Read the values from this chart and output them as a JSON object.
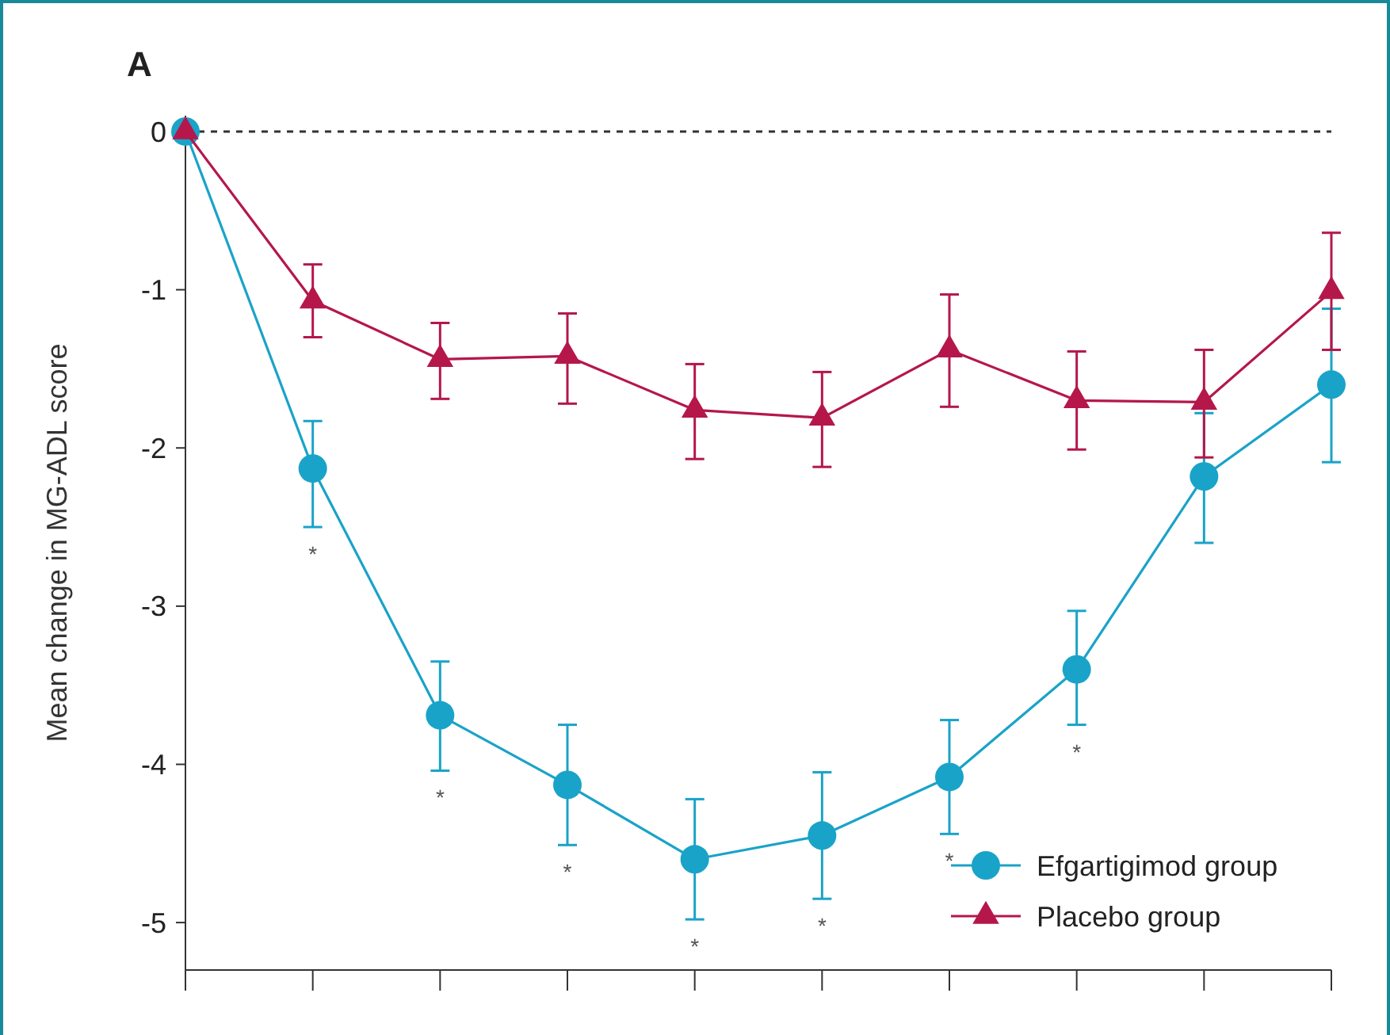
{
  "chart_data": {
    "type": "line",
    "ylabel": "Mean change in MG-ADL score",
    "annotations": [
      "A"
    ],
    "categories": [
      null,
      null,
      null,
      null,
      null,
      null,
      null,
      null,
      null,
      null
    ],
    "ylim": [
      -5.3,
      0.1
    ],
    "yticks": [
      0,
      -1,
      -2,
      -3,
      -4,
      -5
    ],
    "grid": false,
    "legend": "bottom right",
    "ref_lines": [
      {
        "axis": "y",
        "value": 0,
        "color": "#333333",
        "line_style": "dashed"
      }
    ],
    "series": [
      {
        "name": "Efgartigimod group",
        "color": "#1aa3c8",
        "marker": "circle",
        "values": [
          0,
          -2.13,
          -3.69,
          -4.13,
          -4.6,
          -4.45,
          -4.08,
          -3.4,
          -2.18,
          -1.6
        ],
        "errors": [
          null,
          [
            -2.5,
            -1.83
          ],
          [
            -4.04,
            -3.35
          ],
          [
            -4.51,
            -3.75
          ],
          [
            -4.98,
            -4.22
          ],
          [
            -4.85,
            -4.05
          ],
          [
            -4.44,
            -3.72
          ],
          [
            -3.75,
            -3.03
          ],
          [
            -2.6,
            -1.78
          ],
          [
            -2.09,
            -1.12
          ]
        ],
        "value_labels": [
          null,
          "*",
          "*",
          "*",
          "*",
          "*",
          "*",
          "*",
          null,
          null
        ]
      },
      {
        "name": "Placebo group",
        "color": "#b5174b",
        "marker": "triangle",
        "values": [
          0,
          -1.07,
          -1.44,
          -1.42,
          -1.76,
          -1.81,
          -1.38,
          -1.7,
          -1.71,
          -1.01
        ],
        "errors": [
          null,
          [
            -1.3,
            -0.84
          ],
          [
            -1.69,
            -1.21
          ],
          [
            -1.72,
            -1.15
          ],
          [
            -2.07,
            -1.47
          ],
          [
            -2.12,
            -1.52
          ],
          [
            -1.74,
            -1.03
          ],
          [
            -2.01,
            -1.39
          ],
          [
            -2.06,
            -1.38
          ],
          [
            -1.38,
            -0.64
          ]
        ]
      }
    ]
  }
}
